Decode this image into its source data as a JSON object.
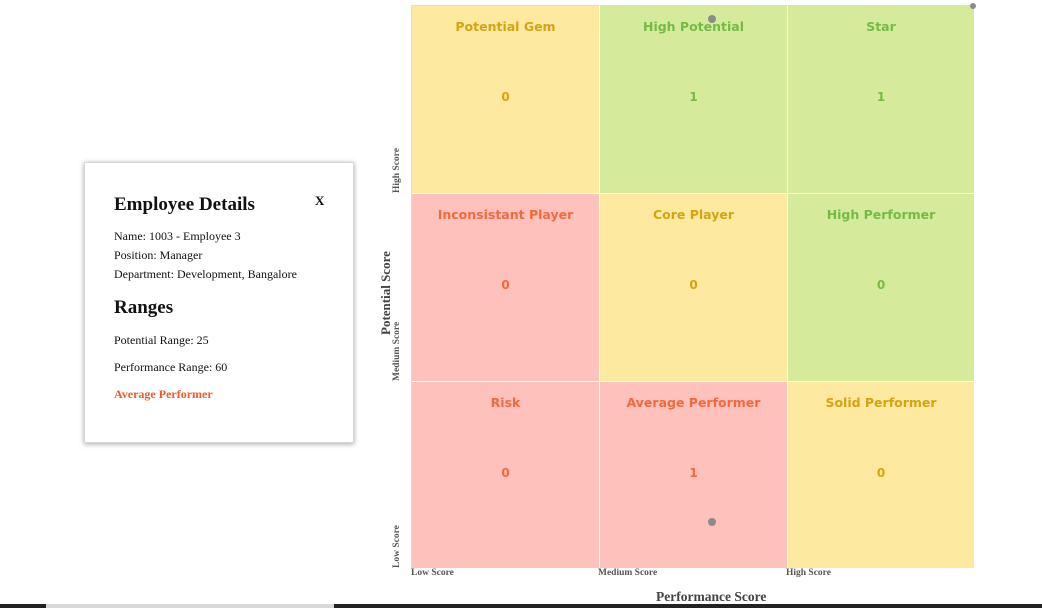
{
  "popup": {
    "close_label": "X",
    "title": "Employee Details",
    "name_line": "Name: 1003 - Employee 3",
    "position_line": "Position: Manager",
    "department_line": "Department: Development, Bangalore",
    "ranges_title": "Ranges",
    "potential_range_line": "Potential Range: 25",
    "performance_range_line": "Performance Range: 60",
    "category": "Average Performer"
  },
  "grid": {
    "cells": [
      {
        "label": "Potential Gem",
        "count": "0",
        "color": "#fee9a1"
      },
      {
        "label": "High Potential",
        "count": "1",
        "color": "#d6ea9c"
      },
      {
        "label": "Star",
        "count": "1",
        "color": "#d6ea9c"
      },
      {
        "label": "Inconsistant Player",
        "count": "0",
        "color": "#fec1bc"
      },
      {
        "label": "Core Player",
        "count": "0",
        "color": "#fee9a1"
      },
      {
        "label": "High Performer",
        "count": "0",
        "color": "#d6ea9c"
      },
      {
        "label": "Risk",
        "count": "0",
        "color": "#fec1bc"
      },
      {
        "label": "Average Performer",
        "count": "1",
        "color": "#fec1bc"
      },
      {
        "label": "Solid Performer",
        "count": "0",
        "color": "#fee9a1"
      }
    ]
  },
  "axes": {
    "x_ticks": [
      "Low Score",
      "Medium Score",
      "High Score"
    ],
    "x_title": "Performance Score",
    "y_ticks": [
      "Low Score",
      "Medium Score",
      "High Score"
    ],
    "y_title": "Potential Score"
  }
}
